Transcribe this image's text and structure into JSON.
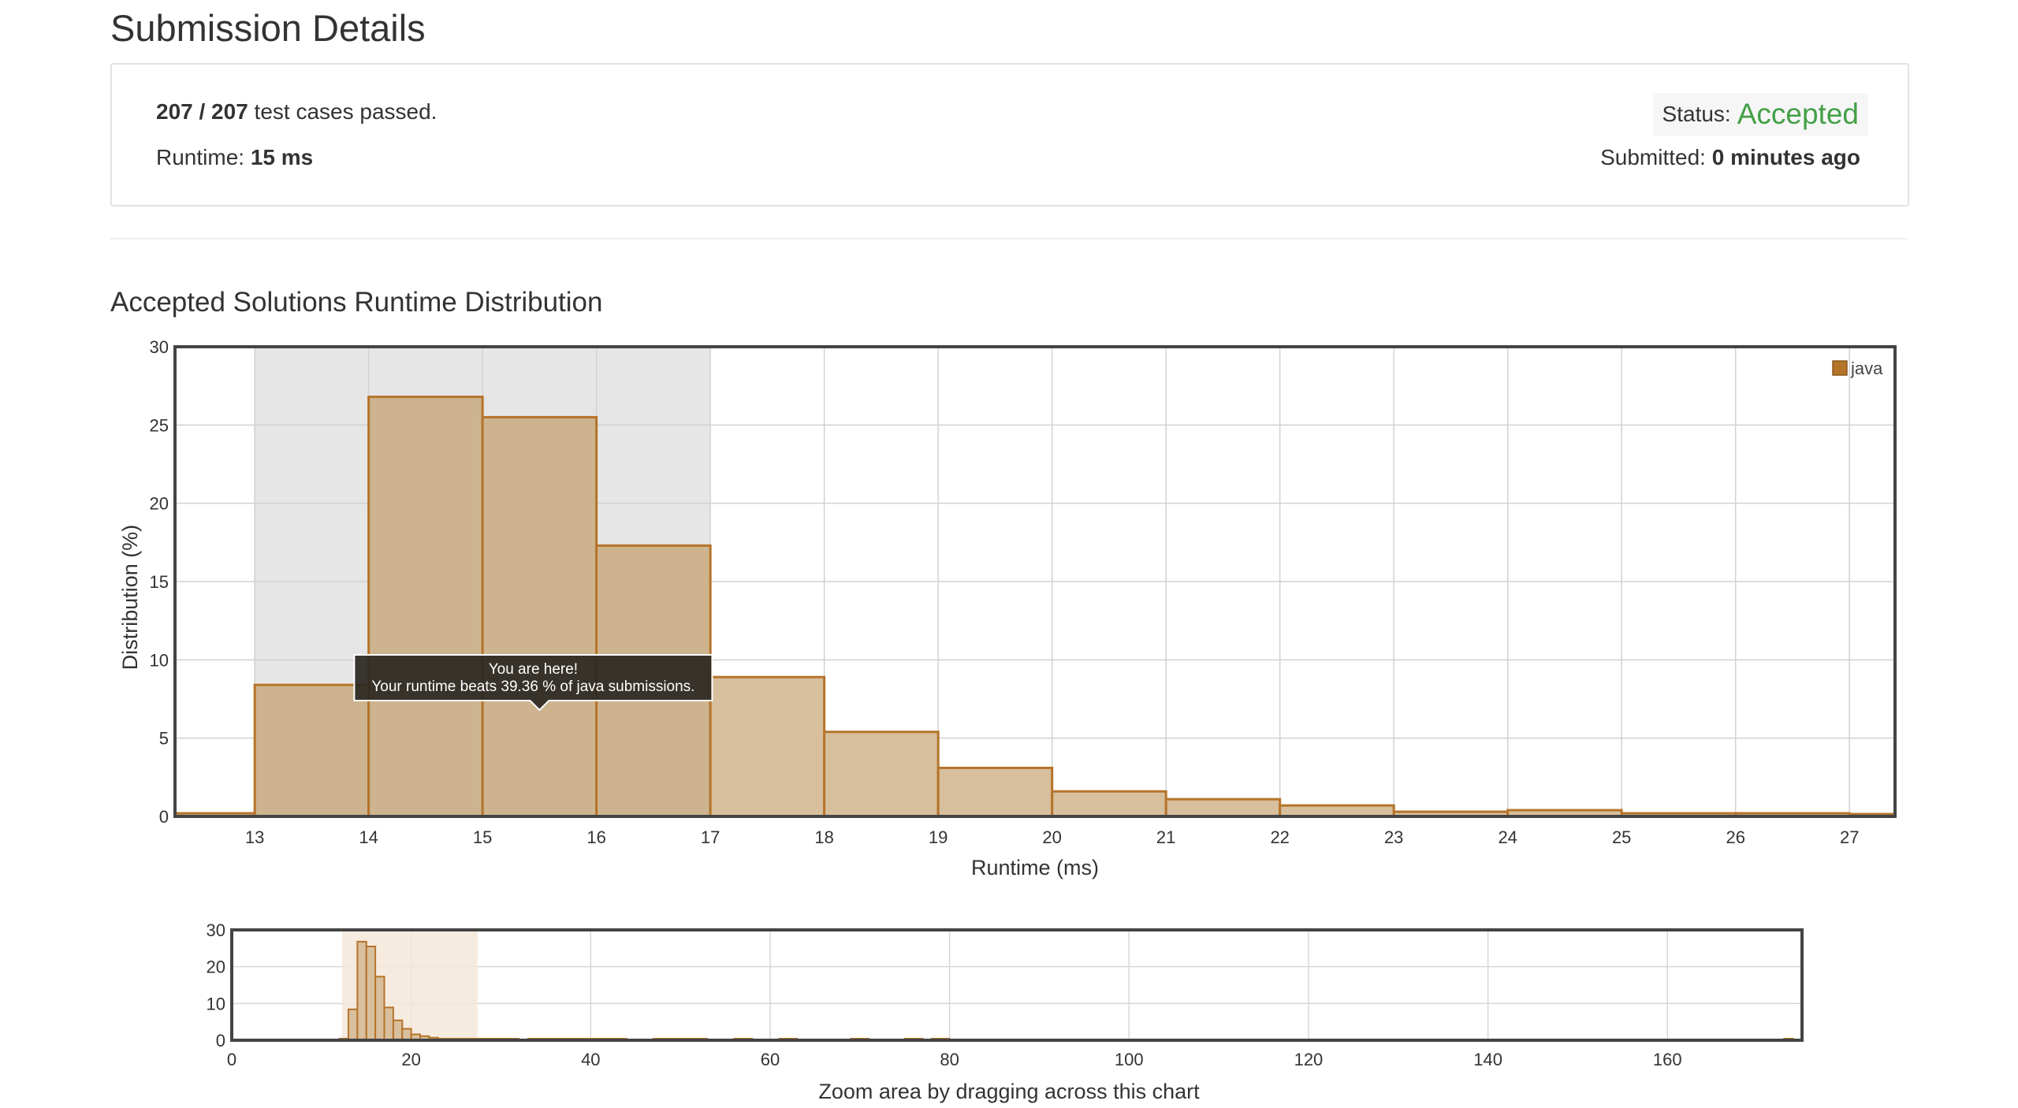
{
  "page": {
    "title": "Submission Details"
  },
  "summary": {
    "passed": "207 / 207",
    "passed_suffix": " test cases passed.",
    "runtime_label": "Runtime: ",
    "runtime_value": "15 ms",
    "status_label": "Status: ",
    "status_value": "Accepted",
    "submitted_label": "Submitted: ",
    "submitted_value": "0 minutes ago"
  },
  "distribution": {
    "title": "Accepted Solutions Runtime Distribution",
    "tooltip_line1": "You are here!",
    "tooltip_line2": "Your runtime beats 39.36 % of java submissions.",
    "nav_caption": "Zoom area by dragging across this chart"
  },
  "colors": {
    "bar_fill": "#d8bf9d",
    "bar_fill_highlight": "#cdb48f",
    "bar_stroke": "#b5742a",
    "highlight_band": "#e6e6e6",
    "accepted": "#43a047",
    "tooltip_bg": "#2a2722"
  },
  "chart_data": [
    {
      "type": "bar",
      "title": "",
      "xlabel": "Runtime (ms)",
      "ylabel": "Distribution (%)",
      "xlim": [
        12.3,
        27.4
      ],
      "ylim": [
        0,
        30
      ],
      "x_ticks": [
        13,
        14,
        15,
        16,
        17,
        18,
        19,
        20,
        21,
        22,
        23,
        24,
        25,
        26,
        27
      ],
      "y_ticks": [
        0,
        5,
        10,
        15,
        20,
        25,
        30
      ],
      "grid": true,
      "legend": "top-right",
      "highlight_range": [
        13,
        17
      ],
      "series": [
        {
          "name": "java",
          "bins": [
            {
              "x0": 12.3,
              "x1": 13,
              "value": 0.2
            },
            {
              "x0": 13,
              "x1": 14,
              "value": 8.4
            },
            {
              "x0": 14,
              "x1": 15,
              "value": 26.8
            },
            {
              "x0": 15,
              "x1": 16,
              "value": 25.5
            },
            {
              "x0": 16,
              "x1": 17,
              "value": 17.3
            },
            {
              "x0": 17,
              "x1": 18,
              "value": 8.9
            },
            {
              "x0": 18,
              "x1": 19,
              "value": 5.4
            },
            {
              "x0": 19,
              "x1": 20,
              "value": 3.1
            },
            {
              "x0": 20,
              "x1": 21,
              "value": 1.6
            },
            {
              "x0": 21,
              "x1": 22,
              "value": 1.1
            },
            {
              "x0": 22,
              "x1": 23,
              "value": 0.7
            },
            {
              "x0": 23,
              "x1": 24,
              "value": 0.3
            },
            {
              "x0": 24,
              "x1": 25,
              "value": 0.4
            },
            {
              "x0": 25,
              "x1": 26,
              "value": 0.2
            },
            {
              "x0": 26,
              "x1": 27,
              "value": 0.2
            },
            {
              "x0": 27,
              "x1": 27.4,
              "value": 0.15
            }
          ]
        }
      ]
    },
    {
      "type": "bar",
      "title": "",
      "xlabel": "Zoom area by dragging across this chart",
      "ylabel": "",
      "xlim": [
        0,
        175
      ],
      "ylim": [
        0,
        30
      ],
      "x_ticks": [
        0,
        20,
        40,
        60,
        80,
        100,
        120,
        140,
        160
      ],
      "y_ticks": [
        0,
        10,
        20,
        30
      ],
      "grid": true,
      "selection_range": [
        12.3,
        27.4
      ],
      "series": [
        {
          "name": "java",
          "x": [
            12,
            13,
            14,
            15,
            16,
            17,
            18,
            19,
            20,
            21,
            22,
            23,
            24,
            25,
            26,
            27,
            28,
            29,
            30,
            31,
            33,
            34,
            35,
            36,
            37,
            38,
            39,
            40,
            41,
            42,
            43,
            47,
            48,
            49,
            50,
            51,
            52,
            56,
            57,
            61,
            62,
            69,
            70,
            75,
            76,
            78,
            79,
            173
          ],
          "values": [
            0.2,
            8.4,
            26.8,
            25.5,
            17.3,
            8.9,
            5.4,
            3.1,
            1.6,
            1.1,
            0.7,
            0.3,
            0.4,
            0.2,
            0.2,
            0.15,
            0.3,
            0.2,
            0.3,
            0.2,
            0.3,
            0.2,
            0.3,
            0.2,
            0.3,
            0.2,
            0.3,
            0.3,
            0.2,
            0.3,
            0.2,
            0.3,
            0.2,
            0.3,
            0.3,
            0.2,
            0.3,
            0.3,
            0.2,
            0.3,
            0.2,
            0.3,
            0.2,
            0.3,
            0.2,
            0.3,
            0.2,
            0.3
          ]
        }
      ]
    }
  ]
}
